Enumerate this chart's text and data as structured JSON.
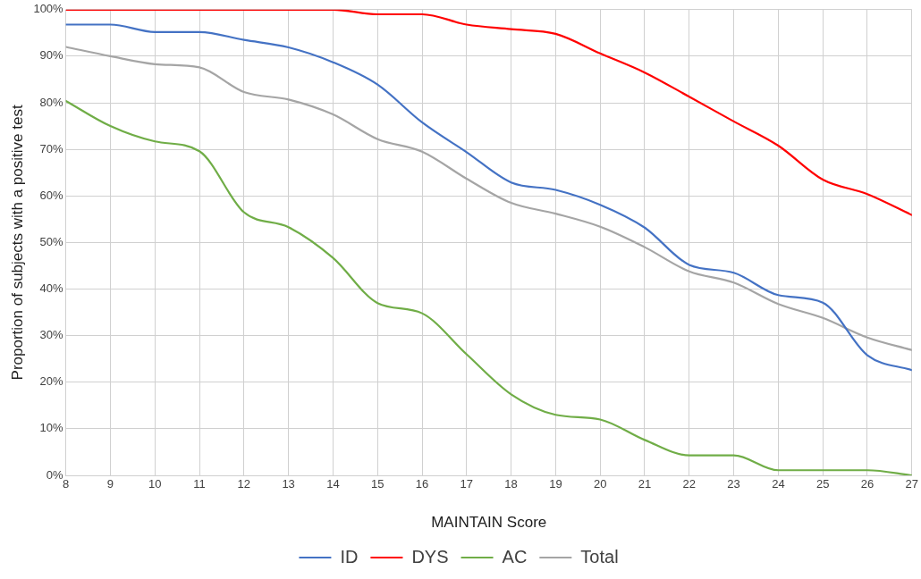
{
  "chart_data": {
    "type": "line",
    "xlabel": "MAINTAIN Score",
    "ylabel": "Proportion of subjects with a positive test",
    "x": [
      8,
      9,
      10,
      11,
      12,
      13,
      14,
      15,
      16,
      17,
      18,
      19,
      20,
      21,
      22,
      23,
      24,
      25,
      26,
      27
    ],
    "xlim": [
      8,
      27
    ],
    "xticks": [
      8,
      9,
      10,
      11,
      12,
      13,
      14,
      15,
      16,
      17,
      18,
      19,
      20,
      21,
      22,
      23,
      24,
      25,
      26,
      27
    ],
    "ylim": [
      0,
      100
    ],
    "yticks": [
      {
        "value": 0,
        "label": "0%"
      },
      {
        "value": 10,
        "label": "10%"
      },
      {
        "value": 20,
        "label": "20%"
      },
      {
        "value": 30,
        "label": "30%"
      },
      {
        "value": 40,
        "label": "40%"
      },
      {
        "value": 50,
        "label": "50%"
      },
      {
        "value": 60,
        "label": "60%"
      },
      {
        "value": 70,
        "label": "70%"
      },
      {
        "value": 80,
        "label": "80%"
      },
      {
        "value": 90,
        "label": "90%"
      },
      {
        "value": 100,
        "label": "100%"
      }
    ],
    "grid": true,
    "legend": "bottom",
    "marker": "none",
    "line_style": "solid",
    "series": [
      {
        "name": "ID",
        "color": "#4472c4",
        "values": [
          96.8,
          96.8,
          95.2,
          95.2,
          93.5,
          91.9,
          88.7,
          83.9,
          75.8,
          69.4,
          62.9,
          61.3,
          58.1,
          53.2,
          45.2,
          43.5,
          38.7,
          37.1,
          25.8,
          22.6
        ]
      },
      {
        "name": "DYS",
        "color": "#ff0000",
        "values": [
          100,
          100,
          100,
          100,
          100,
          100,
          100,
          99,
          99,
          96.8,
          95.8,
          94.8,
          90.6,
          86.5,
          81.3,
          76,
          70.8,
          63.5,
          60.4,
          55.9
        ]
      },
      {
        "name": "AC",
        "color": "#70ad47",
        "values": [
          80.4,
          75,
          71.7,
          69.6,
          56.5,
          53.3,
          46.7,
          37,
          34.8,
          26,
          17.4,
          13,
          12,
          7.6,
          4.3,
          4.3,
          1.1,
          1.1,
          1.1,
          0
        ]
      },
      {
        "name": "Total",
        "color": "#a5a5a5",
        "values": [
          92,
          90,
          88.3,
          87.6,
          82.3,
          80.7,
          77.5,
          72.2,
          69.5,
          63.7,
          58.5,
          56.2,
          53.4,
          49,
          43.8,
          41.4,
          36.8,
          33.8,
          29.6,
          26.9
        ]
      }
    ]
  }
}
